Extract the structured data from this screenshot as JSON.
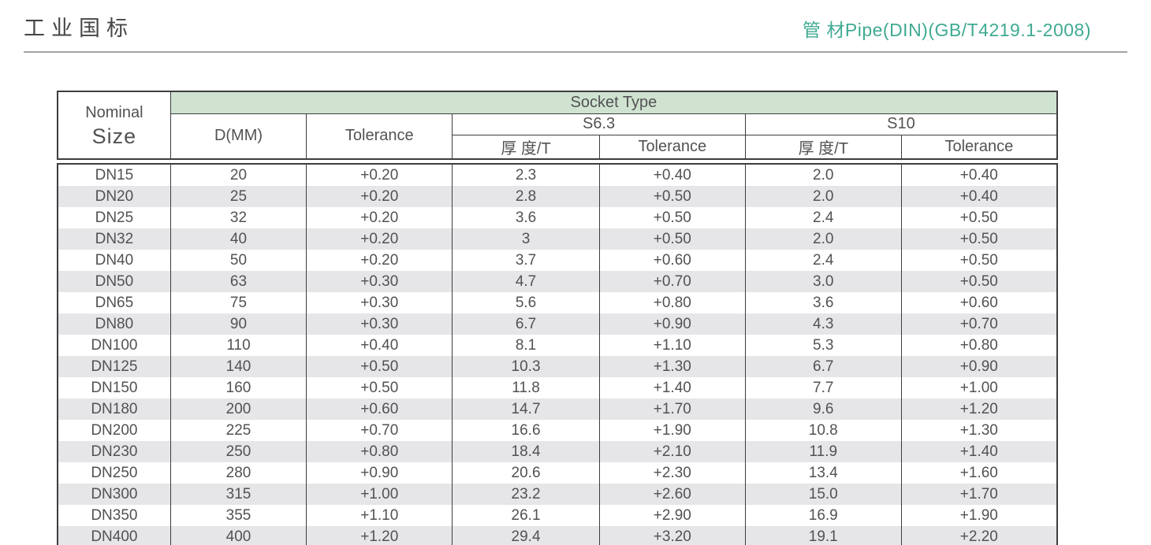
{
  "page": {
    "title_left": "工业国标",
    "title_right": "管 材Pipe(DIN)(GB/T4219.1-2008)"
  },
  "colors": {
    "accent_teal": "#3faa92",
    "socket_band_green": "#d0e3d0",
    "row_stripe_gray": "#e6e6e8"
  },
  "table": {
    "header": {
      "nominal_line1": "Nominal",
      "nominal_line2": "Size",
      "socket_type": "Socket Type",
      "d_mm": "D(MM)",
      "tolerance": "Tolerance",
      "s63": "S6.3",
      "s10": "S10",
      "s63_thickness": "厚 度/T",
      "s63_tolerance": "Tolerance",
      "s10_thickness": "厚 度/T",
      "s10_tolerance": "Tolerance"
    },
    "rows": [
      [
        "DN15",
        "20",
        "+0.20",
        "2.3",
        "+0.40",
        "2.0",
        "+0.40"
      ],
      [
        "DN20",
        "25",
        "+0.20",
        "2.8",
        "+0.50",
        "2.0",
        "+0.40"
      ],
      [
        "DN25",
        "32",
        "+0.20",
        "3.6",
        "+0.50",
        "2.4",
        "+0.50"
      ],
      [
        "DN32",
        "40",
        "+0.20",
        "3",
        "+0.50",
        "2.0",
        "+0.50"
      ],
      [
        "DN40",
        "50",
        "+0.20",
        "3.7",
        "+0.60",
        "2.4",
        "+0.50"
      ],
      [
        "DN50",
        "63",
        "+0.30",
        "4.7",
        "+0.70",
        "3.0",
        "+0.50"
      ],
      [
        "DN65",
        "75",
        "+0.30",
        "5.6",
        "+0.80",
        "3.6",
        "+0.60"
      ],
      [
        "DN80",
        "90",
        "+0.30",
        "6.7",
        "+0.90",
        "4.3",
        "+0.70"
      ],
      [
        "DN100",
        "110",
        "+0.40",
        "8.1",
        "+1.10",
        "5.3",
        "+0.80"
      ],
      [
        "DN125",
        "140",
        "+0.50",
        "10.3",
        "+1.30",
        "6.7",
        "+0.90"
      ],
      [
        "DN150",
        "160",
        "+0.50",
        "11.8",
        "+1.40",
        "7.7",
        "+1.00"
      ],
      [
        "DN180",
        "200",
        "+0.60",
        "14.7",
        "+1.70",
        "9.6",
        "+1.20"
      ],
      [
        "DN200",
        "225",
        "+0.70",
        "16.6",
        "+1.90",
        "10.8",
        "+1.30"
      ],
      [
        "DN230",
        "250",
        "+0.80",
        "18.4",
        "+2.10",
        "11.9",
        "+1.40"
      ],
      [
        "DN250",
        "280",
        "+0.90",
        "20.6",
        "+2.30",
        "13.4",
        "+1.60"
      ],
      [
        "DN300",
        "315",
        "+1.00",
        "23.2",
        "+2.60",
        "15.0",
        "+1.70"
      ],
      [
        "DN350",
        "355",
        "+1.10",
        "26.1",
        "+2.90",
        "16.9",
        "+1.90"
      ],
      [
        "DN400",
        "400",
        "+1.20",
        "29.4",
        "+3.20",
        "19.1",
        "+2.20"
      ]
    ]
  }
}
